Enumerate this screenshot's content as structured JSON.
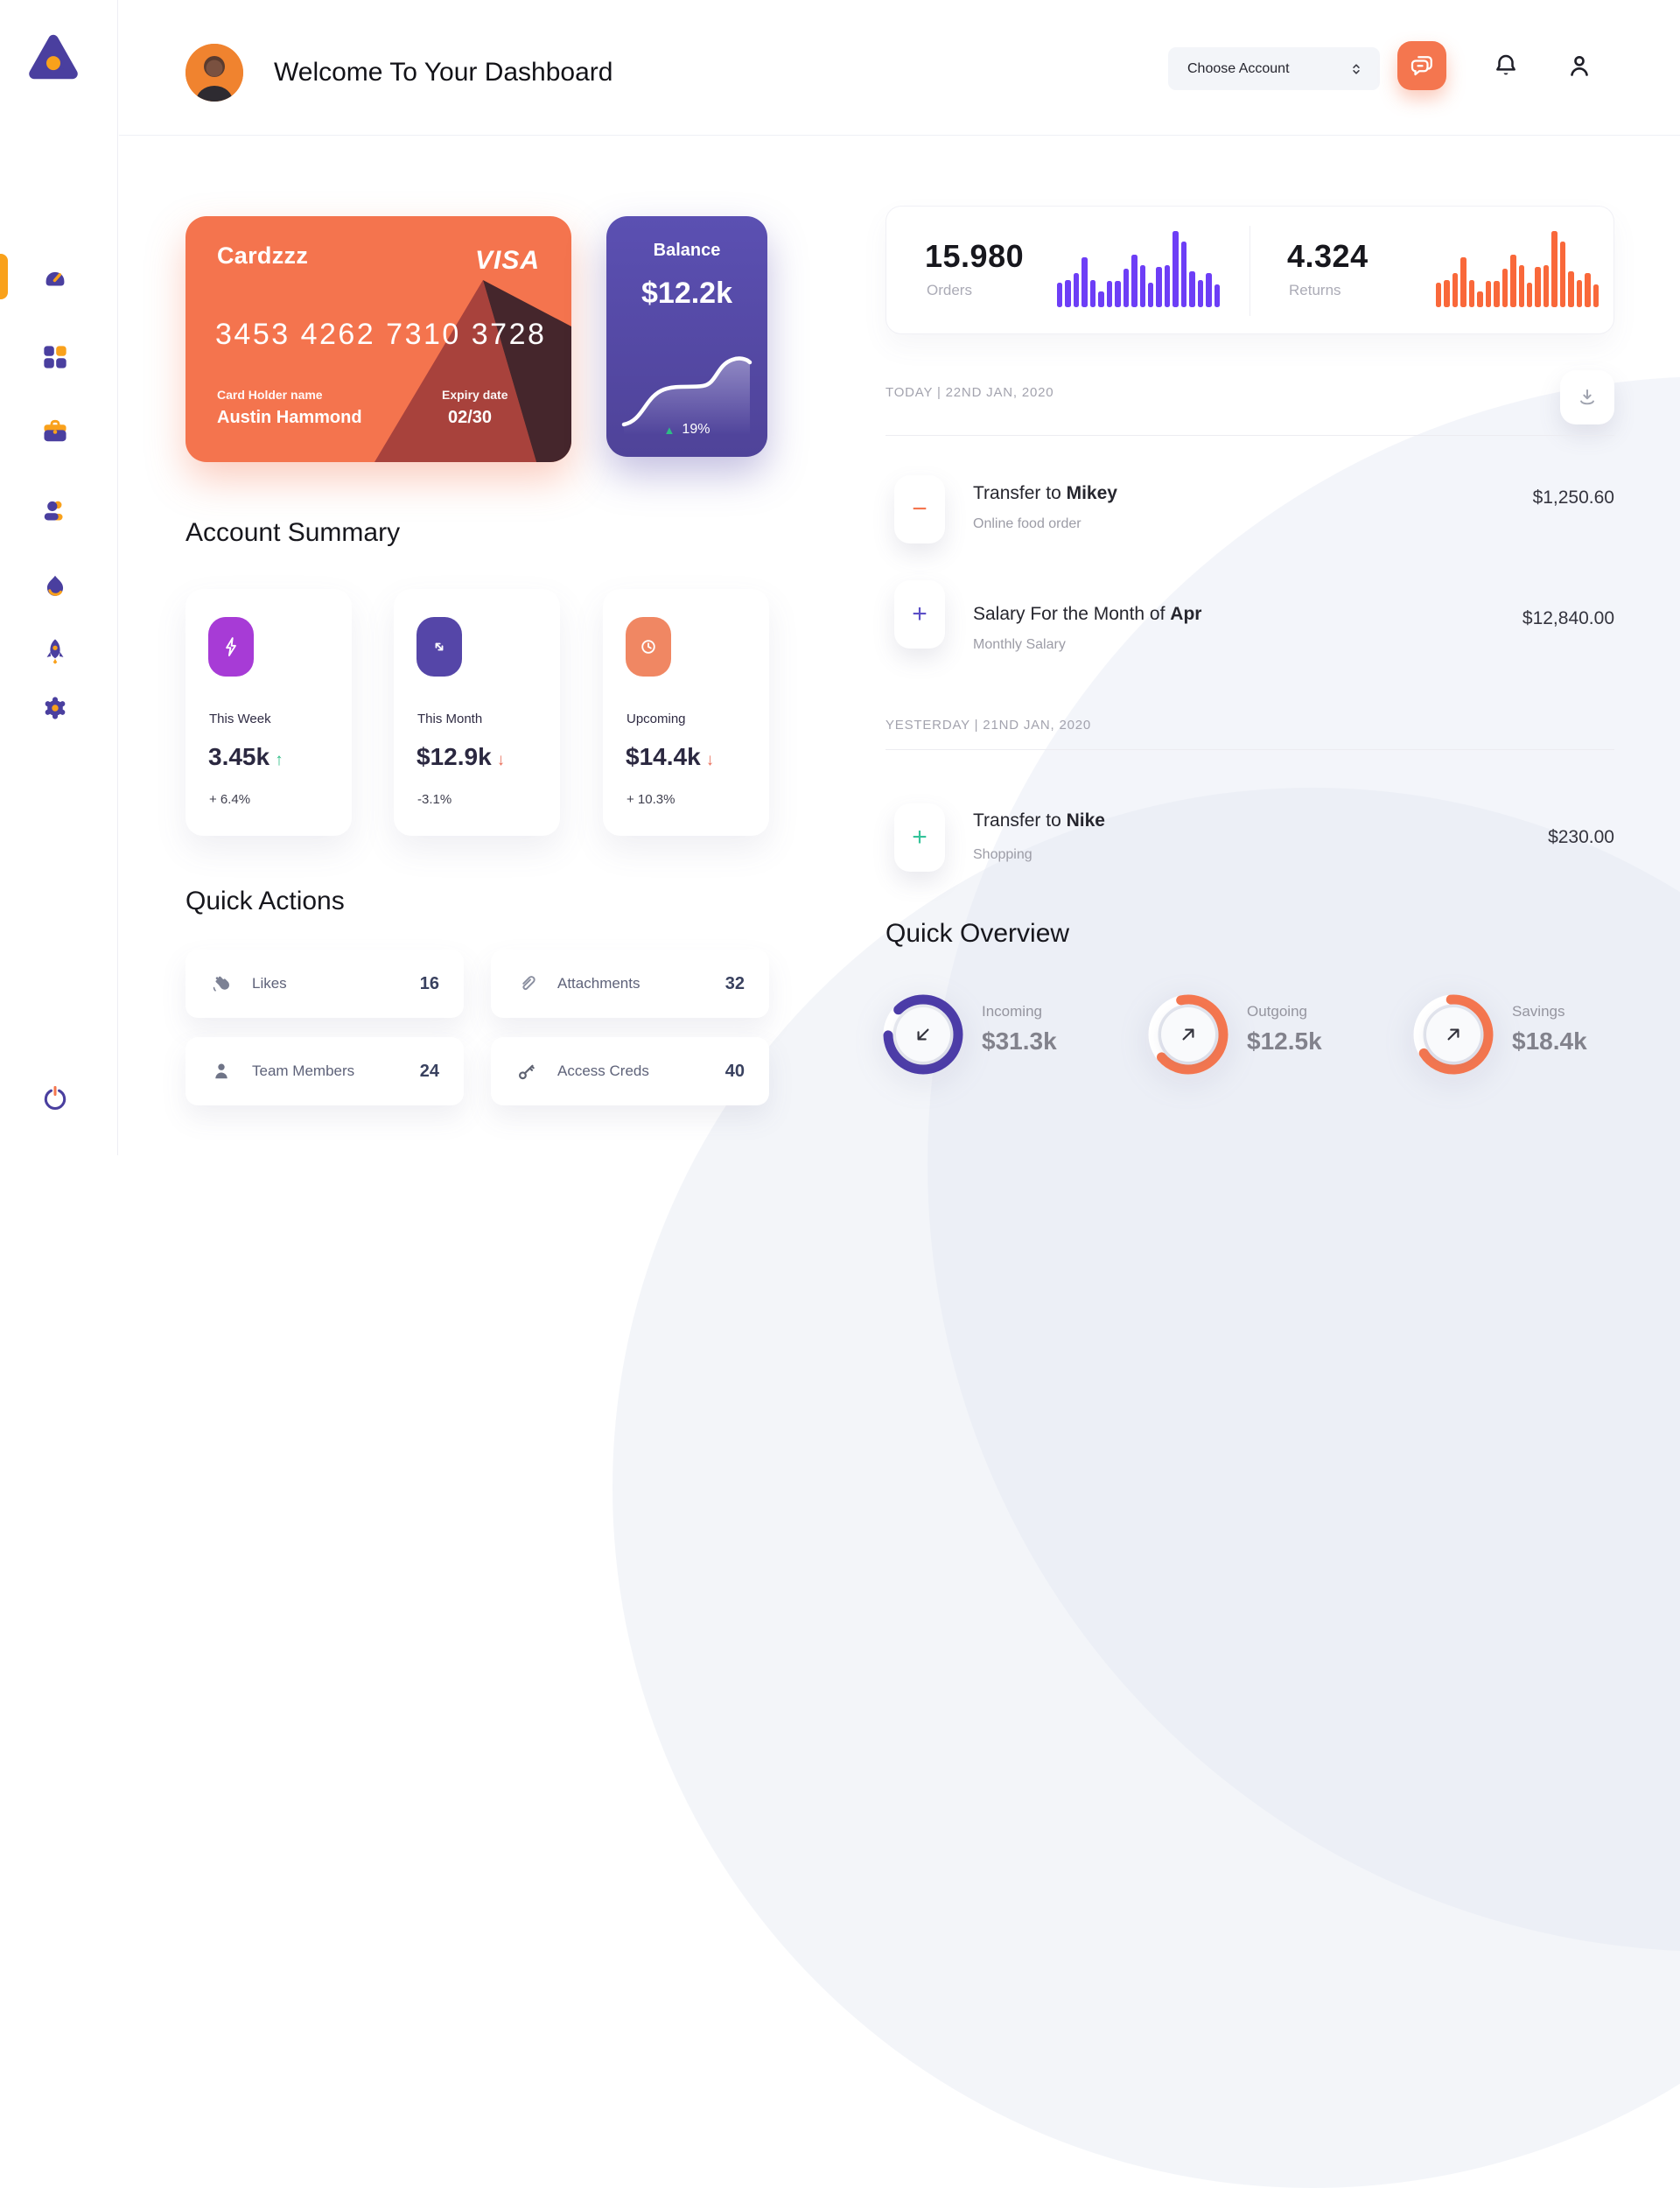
{
  "header": {
    "title": "Welcome To Your Dashboard",
    "account_select_label": "Choose Account"
  },
  "sidebar": {
    "logo": "triangle-logo",
    "items": [
      "dashboard",
      "apps",
      "briefcase",
      "profile",
      "activity",
      "launch",
      "settings"
    ],
    "logout": "power"
  },
  "wallet_card": {
    "name": "Cardzzz",
    "brand": "VISA",
    "number": "3453 4262 7310 3728",
    "holder_label": "Card Holder name",
    "holder_name": "Austin Hammond",
    "expiry_label": "Expiry date",
    "expiry": "02/30"
  },
  "balance_card": {
    "label": "Balance",
    "value": "$12.2k",
    "trend_arrow": "▲",
    "trend_value": "19%"
  },
  "stats": {
    "orders": {
      "value": "15.980",
      "label": "Orders",
      "bar_color": "#6D3EF6",
      "bars": [
        30,
        34,
        42,
        62,
        34,
        20,
        33,
        33,
        48,
        65,
        52,
        30,
        50,
        52,
        95,
        82,
        45,
        34,
        42,
        28
      ]
    },
    "returns": {
      "value": "4.324",
      "label": "Returns",
      "bar_color": "#F9683A",
      "bars": [
        30,
        34,
        42,
        62,
        34,
        20,
        33,
        33,
        48,
        65,
        52,
        30,
        50,
        52,
        95,
        82,
        45,
        34,
        42,
        28
      ]
    }
  },
  "account_summary": {
    "title": "Account Summary",
    "cards": [
      {
        "icon": "lightning-icon",
        "icon_bg": "#A73BD6",
        "label": "This Week",
        "value": "3.45k",
        "arrow": "↑",
        "arrow_color": "#2EBD85",
        "delta": "+ 6.4%"
      },
      {
        "icon": "swap-arrows-icon",
        "icon_bg": "#5546A8",
        "label": "This Month",
        "value": "$12.9k",
        "arrow": "↓",
        "arrow_color": "#E9705C",
        "delta": "-3.1%"
      },
      {
        "icon": "clock-icon",
        "icon_bg": "#F08763",
        "label": "Upcoming",
        "value": "$14.4k",
        "arrow": "↓",
        "arrow_color": "#E9705C",
        "delta": "+ 10.3%"
      }
    ]
  },
  "quick_actions": {
    "title": "Quick Actions",
    "items": [
      {
        "icon": "waving-hand-icon",
        "label": "Likes",
        "count": "16"
      },
      {
        "icon": "paperclip-icon",
        "label": "Attachments",
        "count": "32"
      },
      {
        "icon": "person-icon",
        "label": "Team Members",
        "count": "24"
      },
      {
        "icon": "key-icon",
        "label": "Access Creds",
        "count": "40"
      }
    ]
  },
  "activity": {
    "groups": [
      {
        "date_label": "TODAY | 22ND JAN, 2020",
        "items": [
          {
            "sign": "−",
            "sign_color": "#F4764F",
            "title_prefix": "Transfer to ",
            "title_bold": "Mikey",
            "subtitle": "Online food order",
            "amount": "$1,250.60"
          },
          {
            "sign": "+",
            "sign_color": "#5B4FC7",
            "title_prefix": "Salary For the Month of ",
            "title_bold": "Apr",
            "subtitle": "Monthly Salary",
            "amount": "$12,840.00"
          }
        ]
      },
      {
        "date_label": "YESTERDAY | 21ND JAN, 2020",
        "items": [
          {
            "sign": "+",
            "sign_color": "#35C39A",
            "title_prefix": "Transfer to ",
            "title_bold": "Nike",
            "subtitle": "Shopping",
            "amount": "$230.00"
          }
        ]
      }
    ]
  },
  "quick_overview": {
    "title": "Quick Overview",
    "items": [
      {
        "label": "Incoming",
        "value": "$31.3k",
        "pct": 87,
        "ring_color": "#4C3CA8",
        "arrow": "down-left"
      },
      {
        "label": "Outgoing",
        "value": "$12.5k",
        "pct": 67,
        "ring_color": "#F4764F",
        "arrow": "up-right"
      },
      {
        "label": "Savings",
        "value": "$18.4k",
        "pct": 67,
        "ring_color": "#F4764F",
        "arrow": "up-right"
      }
    ]
  },
  "colors": {
    "accent_orange": "#F4764F",
    "accent_purple": "#554AA9",
    "bars_purple": "#6D3EF6",
    "bars_orange": "#F9683A",
    "positive_green": "#2EBD85",
    "negative_red": "#E9705C",
    "sidebar_icon_purple": "#4A3F9F",
    "sidebar_icon_orange": "#F9A11B"
  }
}
